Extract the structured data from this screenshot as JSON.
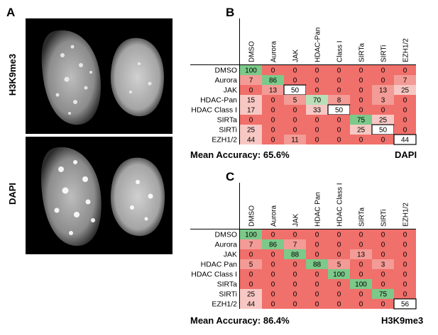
{
  "panels": {
    "a_letter": "A",
    "b_letter": "B",
    "c_letter": "C",
    "micro_top_label": "H3K9me3",
    "micro_bottom_label": "DAPI"
  },
  "chart_data": [
    {
      "type": "heatmap",
      "id": "B",
      "columns": [
        "DMSO",
        "Aurora",
        "JAK",
        "HDAC-Pan",
        "Class I",
        "SIRTa",
        "SIRTi",
        "EZH1/2"
      ],
      "rows": [
        "DMSO",
        "Aurora",
        "JAK",
        "HDAC-Pan",
        "HDAC Class I",
        "SIRTa",
        "SIRTi",
        "EZH1/2"
      ],
      "values": [
        [
          100,
          0,
          0,
          0,
          0,
          0,
          0,
          0
        ],
        [
          7,
          86,
          0,
          0,
          0,
          0,
          0,
          7
        ],
        [
          0,
          13,
          50,
          0,
          0,
          0,
          13,
          25
        ],
        [
          15,
          0,
          5,
          70,
          8,
          0,
          3,
          0
        ],
        [
          17,
          0,
          0,
          33,
          50,
          0,
          0,
          0
        ],
        [
          0,
          0,
          0,
          0,
          0,
          75,
          25,
          0
        ],
        [
          25,
          0,
          0,
          0,
          0,
          25,
          50,
          0
        ],
        [
          44,
          0,
          11,
          0,
          0,
          0,
          0,
          44
        ]
      ],
      "mean_accuracy": "Mean Accuracy: 65.6%",
      "stain": "DAPI"
    },
    {
      "type": "heatmap",
      "id": "C",
      "columns": [
        "DMSO",
        "Aurora",
        "JAK",
        "HDAC Pan",
        "HDAC Class I",
        "SIRTa",
        "SIRTi",
        "EZH1/2"
      ],
      "rows": [
        "DMSO",
        "Aurora",
        "JAK",
        "HDAC Pan",
        "HDAC Class I",
        "SIRTa",
        "SIRTi",
        "EZH1/2"
      ],
      "values": [
        [
          100,
          0,
          0,
          0,
          0,
          0,
          0,
          0
        ],
        [
          7,
          86,
          7,
          0,
          0,
          0,
          0,
          0
        ],
        [
          0,
          0,
          88,
          0,
          0,
          13,
          0,
          0
        ],
        [
          5,
          0,
          0,
          88,
          5,
          0,
          3,
          0
        ],
        [
          0,
          0,
          0,
          0,
          100,
          0,
          0,
          0
        ],
        [
          0,
          0,
          0,
          0,
          0,
          100,
          0,
          0
        ],
        [
          25,
          0,
          0,
          0,
          0,
          0,
          75,
          0
        ],
        [
          44,
          0,
          0,
          0,
          0,
          0,
          0,
          56
        ]
      ],
      "mean_accuracy": "Mean Accuracy: 86.4%",
      "stain": "H3K9me3"
    }
  ],
  "colors": {
    "base": "#f0706b",
    "diag_high": "#7cc98a",
    "diag_mid": "#b9dfb8",
    "diag_low": "#ffffff",
    "pale": "#f7c7c3"
  }
}
